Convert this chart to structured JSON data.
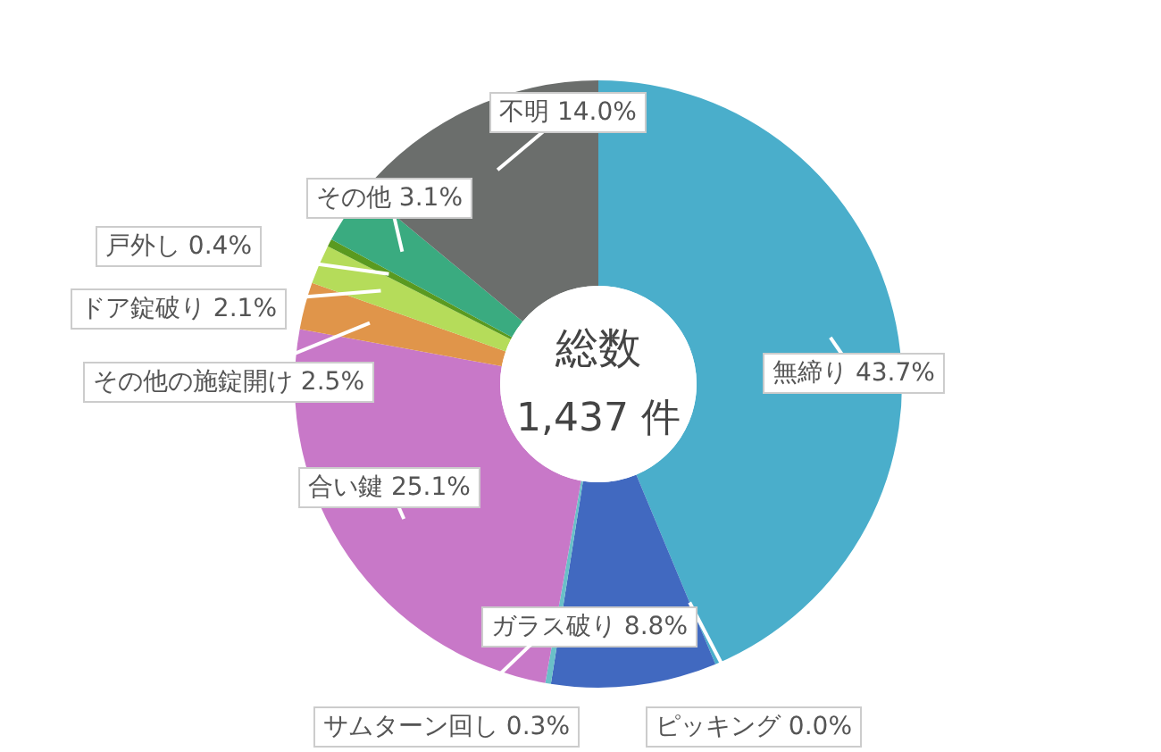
{
  "chart_data": {
    "type": "donut",
    "title": "総数",
    "subtitle": "1,437 件",
    "categories": [
      "無締り",
      "ピッキング",
      "ガラス破り",
      "サムターン回し",
      "合い鍵",
      "その他の施錠開け",
      "ドア錠破り",
      "戸外し",
      "その他",
      "不明"
    ],
    "values": [
      43.7,
      0.0,
      8.8,
      0.3,
      25.1,
      2.5,
      2.1,
      0.4,
      3.1,
      14.0
    ],
    "value_labels": [
      "43.7%",
      "0.0%",
      "8.8%",
      "0.3%",
      "25.1%",
      "2.5%",
      "2.1%",
      "0.4%",
      "3.1%",
      "14.0%"
    ],
    "colors": [
      "#4aaecb",
      null,
      "#4169c0",
      "#6ac0c8",
      "#c878c8",
      "#e0954a",
      "#b5dc5a",
      "#5a9a20",
      "#3aab80",
      "#6b6e6c"
    ]
  }
}
